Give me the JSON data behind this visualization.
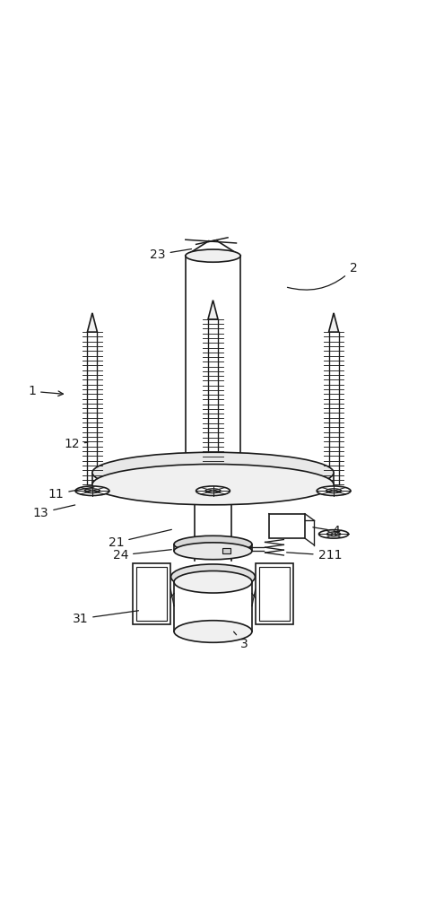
{
  "bg_color": "#ffffff",
  "line_color": "#1a1a1a",
  "line_width": 1.2,
  "fig_width": 4.75,
  "fig_height": 10.0
}
